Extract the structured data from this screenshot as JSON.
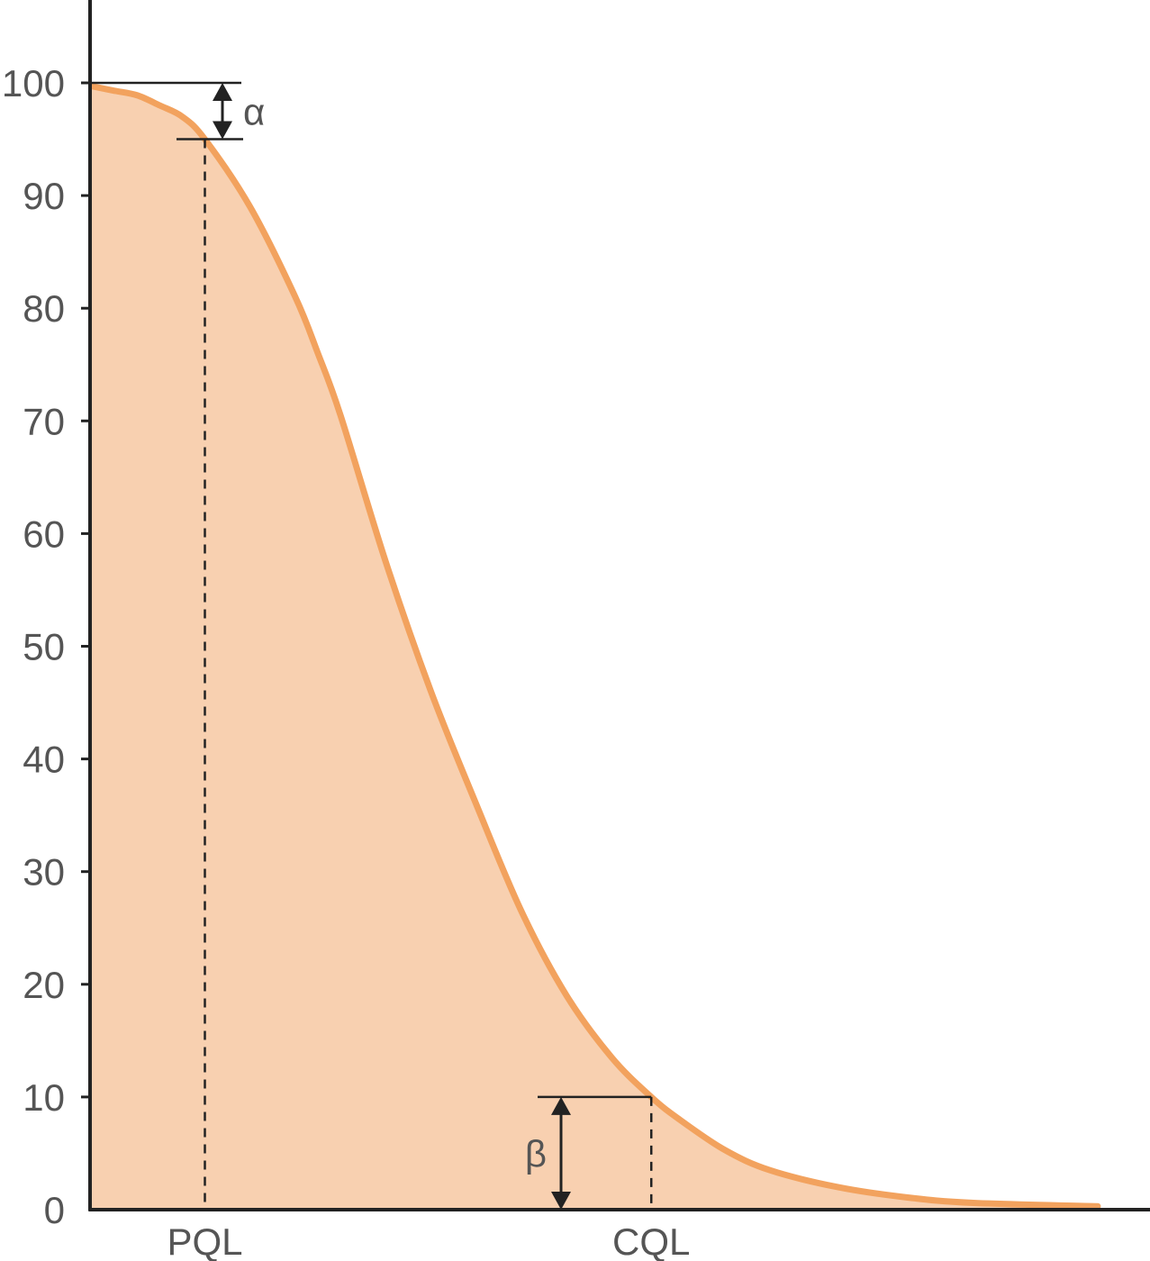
{
  "chart_data": {
    "type": "area",
    "title": "",
    "xlabel": "",
    "ylabel": "",
    "ylim": [
      0,
      100
    ],
    "yticks": [
      "0",
      "10",
      "20",
      "30",
      "40",
      "50",
      "60",
      "70",
      "80",
      "90",
      "100"
    ],
    "grid": false,
    "x_markers": [
      {
        "label": "PQL",
        "x": 1.0,
        "y": 95
      },
      {
        "label": "CQL",
        "x": 4.95,
        "y": 10
      }
    ],
    "annotations": [
      {
        "symbol": "α",
        "from": 100,
        "to": 95
      },
      {
        "symbol": "β",
        "from": 10,
        "to": 0
      }
    ],
    "series": [
      {
        "x": [
          0,
          0.2,
          0.4,
          0.6,
          0.8,
          1.0,
          1.4,
          1.8,
          2.0,
          2.2,
          2.6,
          3.0,
          3.4,
          3.8,
          4.2,
          4.6,
          4.95,
          5.2,
          5.6,
          6.0,
          6.6,
          7.2,
          7.8,
          8.9
        ],
        "y": [
          99.7,
          99.3,
          98.9,
          98.0,
          97.0,
          95,
          89,
          81,
          76,
          70.5,
          57.5,
          46,
          36,
          26.5,
          19,
          13.5,
          10,
          8,
          5.3,
          3.5,
          2.0,
          1.1,
          0.6,
          0.3
        ]
      }
    ],
    "colors": {
      "line": "#F2A25E",
      "fill": "#F8D0B0",
      "axis": "#222222",
      "text": "#555555"
    }
  }
}
